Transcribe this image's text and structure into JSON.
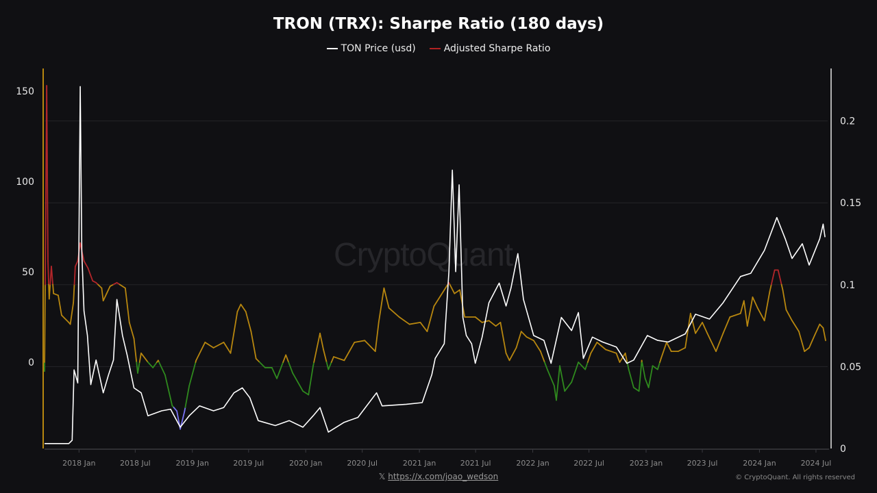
{
  "title": "TRON (TRX): Sharpe Ratio (180 days)",
  "legend": [
    {
      "label": "TON Price (usd)",
      "color": "#ffffff"
    },
    {
      "label": "Adjusted Sharpe Ratio",
      "color": "#b22222"
    }
  ],
  "watermark": "CryptoQuant",
  "footer": {
    "x_icon": "𝕏",
    "link": "https://x.com/joao_wedson",
    "copyright": "© CryptoQuant. All rights reserved"
  },
  "chart_data": {
    "type": "line",
    "title": "TRON (TRX): Sharpe Ratio (180 days)",
    "grid": true,
    "legend_position": "top-center",
    "x_range": [
      "2017-09-12",
      "2024-08-01"
    ],
    "x_ticks": [
      "2018 Jan",
      "2018 Jul",
      "2019 Jan",
      "2019 Jul",
      "2020 Jan",
      "2020 Jul",
      "2021 Jan",
      "2021 Jul",
      "2022 Jan",
      "2022 Jul",
      "2023 Jan",
      "2023 Jul",
      "2024 Jan",
      "2024 Jul"
    ],
    "x_tick_dates": [
      "2018-01-01",
      "2018-07-01",
      "2019-01-01",
      "2019-07-01",
      "2020-01-01",
      "2020-07-01",
      "2021-01-01",
      "2021-07-01",
      "2022-01-01",
      "2022-07-01",
      "2023-01-01",
      "2023-07-01",
      "2024-01-01",
      "2024-07-01"
    ],
    "y_left": {
      "ticks": [
        0,
        50,
        100,
        150
      ],
      "range": [
        -47.7,
        162
      ]
    },
    "y_right": {
      "ticks": [
        0,
        0.05,
        0.1,
        0.15,
        0.2
      ],
      "range": [
        0,
        0.232
      ]
    },
    "sharpe_color_bands": [
      {
        "min": 43,
        "max": 1000,
        "color": "#b3262a"
      },
      {
        "min": 0,
        "max": 43,
        "color": "#b8870f"
      },
      {
        "min": -25,
        "max": 0,
        "color": "#2f8a1e"
      },
      {
        "min": -1000,
        "max": -25,
        "color": "#7a74f5"
      }
    ],
    "series": [
      {
        "name": "TON Price (usd)",
        "axis": "right",
        "color": "#ffffff",
        "points": [
          [
            "2017-09-12",
            0.003
          ],
          [
            "2017-11-29",
            0.003
          ],
          [
            "2017-12-10",
            0.005
          ],
          [
            "2017-12-16",
            0.048
          ],
          [
            "2017-12-28",
            0.04
          ],
          [
            "2018-01-05",
            0.221
          ],
          [
            "2018-01-10",
            0.12
          ],
          [
            "2018-01-17",
            0.084
          ],
          [
            "2018-01-28",
            0.069
          ],
          [
            "2018-02-08",
            0.039
          ],
          [
            "2018-02-25",
            0.054
          ],
          [
            "2018-03-20",
            0.034
          ],
          [
            "2018-04-06",
            0.045
          ],
          [
            "2018-04-22",
            0.054
          ],
          [
            "2018-05-03",
            0.091
          ],
          [
            "2018-05-21",
            0.069
          ],
          [
            "2018-06-05",
            0.057
          ],
          [
            "2018-06-27",
            0.037
          ],
          [
            "2018-07-20",
            0.034
          ],
          [
            "2018-08-11",
            0.02
          ],
          [
            "2018-09-24",
            0.023
          ],
          [
            "2018-10-23",
            0.024
          ],
          [
            "2018-11-23",
            0.013
          ],
          [
            "2018-12-22",
            0.02
          ],
          [
            "2019-01-24",
            0.026
          ],
          [
            "2019-03-10",
            0.023
          ],
          [
            "2019-04-12",
            0.025
          ],
          [
            "2019-05-15",
            0.034
          ],
          [
            "2019-06-11",
            0.037
          ],
          [
            "2019-07-05",
            0.031
          ],
          [
            "2019-08-01",
            0.017
          ],
          [
            "2019-09-25",
            0.014
          ],
          [
            "2019-11-09",
            0.017
          ],
          [
            "2019-12-23",
            0.013
          ],
          [
            "2020-01-25",
            0.02
          ],
          [
            "2020-02-16",
            0.025
          ],
          [
            "2020-03-14",
            0.01
          ],
          [
            "2020-05-04",
            0.016
          ],
          [
            "2020-06-17",
            0.019
          ],
          [
            "2020-08-16",
            0.034
          ],
          [
            "2020-09-03",
            0.026
          ],
          [
            "2020-11-20",
            0.027
          ],
          [
            "2021-01-10",
            0.028
          ],
          [
            "2021-02-10",
            0.045
          ],
          [
            "2021-02-21",
            0.055
          ],
          [
            "2021-03-22",
            0.064
          ],
          [
            "2021-04-06",
            0.108
          ],
          [
            "2021-04-17",
            0.17
          ],
          [
            "2021-04-28",
            0.108
          ],
          [
            "2021-05-09",
            0.161
          ],
          [
            "2021-05-21",
            0.08
          ],
          [
            "2021-06-01",
            0.069
          ],
          [
            "2021-06-18",
            0.064
          ],
          [
            "2021-06-30",
            0.052
          ],
          [
            "2021-07-22",
            0.068
          ],
          [
            "2021-08-13",
            0.089
          ],
          [
            "2021-09-15",
            0.101
          ],
          [
            "2021-10-07",
            0.087
          ],
          [
            "2021-10-23",
            0.098
          ],
          [
            "2021-11-14",
            0.119
          ],
          [
            "2021-12-02",
            0.091
          ],
          [
            "2022-01-04",
            0.069
          ],
          [
            "2022-02-06",
            0.066
          ],
          [
            "2022-03-01",
            0.052
          ],
          [
            "2022-04-03",
            0.08
          ],
          [
            "2022-05-06",
            0.072
          ],
          [
            "2022-05-28",
            0.083
          ],
          [
            "2022-06-13",
            0.055
          ],
          [
            "2022-07-12",
            0.068
          ],
          [
            "2022-08-14",
            0.065
          ],
          [
            "2022-09-27",
            0.062
          ],
          [
            "2022-10-31",
            0.052
          ],
          [
            "2022-11-22",
            0.054
          ],
          [
            "2023-01-05",
            0.069
          ],
          [
            "2023-02-07",
            0.066
          ],
          [
            "2023-03-13",
            0.065
          ],
          [
            "2023-05-07",
            0.07
          ],
          [
            "2023-06-09",
            0.082
          ],
          [
            "2023-07-24",
            0.079
          ],
          [
            "2023-09-06",
            0.089
          ],
          [
            "2023-11-01",
            0.105
          ],
          [
            "2023-12-04",
            0.107
          ],
          [
            "2024-01-17",
            0.121
          ],
          [
            "2024-02-26",
            0.141
          ],
          [
            "2024-03-24",
            0.128
          ],
          [
            "2024-04-15",
            0.116
          ],
          [
            "2024-05-18",
            0.125
          ],
          [
            "2024-06-09",
            0.112
          ],
          [
            "2024-07-13",
            0.128
          ],
          [
            "2024-07-24",
            0.137
          ],
          [
            "2024-07-30",
            0.129
          ]
        ]
      },
      {
        "name": "Adjusted Sharpe Ratio",
        "axis": "left",
        "points": [
          [
            "2017-09-12",
            -5
          ],
          [
            "2017-09-14",
            40
          ],
          [
            "2017-09-19",
            153
          ],
          [
            "2017-09-23",
            56
          ],
          [
            "2017-09-27",
            35
          ],
          [
            "2017-10-04",
            53
          ],
          [
            "2017-10-11",
            38
          ],
          [
            "2017-10-26",
            37
          ],
          [
            "2017-11-06",
            26
          ],
          [
            "2017-11-29",
            22
          ],
          [
            "2017-12-04",
            21
          ],
          [
            "2017-12-14",
            33
          ],
          [
            "2017-12-20",
            53
          ],
          [
            "2017-12-28",
            56
          ],
          [
            "2018-01-05",
            66
          ],
          [
            "2018-01-17",
            56
          ],
          [
            "2018-01-30",
            52
          ],
          [
            "2018-02-14",
            45
          ],
          [
            "2018-02-25",
            44
          ],
          [
            "2018-03-15",
            41
          ],
          [
            "2018-03-20",
            34
          ],
          [
            "2018-03-31",
            38
          ],
          [
            "2018-04-11",
            42
          ],
          [
            "2018-05-03",
            44
          ],
          [
            "2018-05-30",
            41
          ],
          [
            "2018-06-12",
            22
          ],
          [
            "2018-06-27",
            13
          ],
          [
            "2018-07-09",
            -6
          ],
          [
            "2018-07-20",
            5
          ],
          [
            "2018-08-11",
            0
          ],
          [
            "2018-08-27",
            -3
          ],
          [
            "2018-09-13",
            1
          ],
          [
            "2018-10-05",
            -7
          ],
          [
            "2018-10-28",
            -24
          ],
          [
            "2018-11-12",
            -27
          ],
          [
            "2018-11-23",
            -37
          ],
          [
            "2018-12-07",
            -27
          ],
          [
            "2018-12-22",
            -13
          ],
          [
            "2019-01-13",
            1
          ],
          [
            "2019-02-11",
            11
          ],
          [
            "2019-03-10",
            8
          ],
          [
            "2019-04-12",
            11
          ],
          [
            "2019-05-04",
            5
          ],
          [
            "2019-05-26",
            28
          ],
          [
            "2019-06-06",
            32
          ],
          [
            "2019-06-22",
            28
          ],
          [
            "2019-07-09",
            17
          ],
          [
            "2019-07-25",
            2
          ],
          [
            "2019-08-23",
            -3
          ],
          [
            "2019-09-14",
            -3
          ],
          [
            "2019-09-30",
            -9
          ],
          [
            "2019-10-29",
            4
          ],
          [
            "2019-11-20",
            -6
          ],
          [
            "2019-12-23",
            -16
          ],
          [
            "2020-01-10",
            -18
          ],
          [
            "2020-01-25",
            -2
          ],
          [
            "2020-02-16",
            16
          ],
          [
            "2020-02-27",
            7
          ],
          [
            "2020-03-14",
            -4
          ],
          [
            "2020-03-31",
            3
          ],
          [
            "2020-05-04",
            1
          ],
          [
            "2020-06-06",
            11
          ],
          [
            "2020-07-09",
            12
          ],
          [
            "2020-08-12",
            6
          ],
          [
            "2020-08-23",
            22
          ],
          [
            "2020-09-09",
            41
          ],
          [
            "2020-09-25",
            30
          ],
          [
            "2020-10-28",
            25
          ],
          [
            "2020-11-30",
            21
          ],
          [
            "2021-01-04",
            22
          ],
          [
            "2021-01-26",
            17
          ],
          [
            "2021-02-17",
            31
          ],
          [
            "2021-04-06",
            44
          ],
          [
            "2021-04-24",
            38
          ],
          [
            "2021-05-11",
            40
          ],
          [
            "2021-05-27",
            25
          ],
          [
            "2021-06-30",
            25
          ],
          [
            "2021-07-22",
            22
          ],
          [
            "2021-08-13",
            23
          ],
          [
            "2021-09-04",
            20
          ],
          [
            "2021-09-19",
            22
          ],
          [
            "2021-10-07",
            5
          ],
          [
            "2021-10-18",
            1
          ],
          [
            "2021-11-09",
            8
          ],
          [
            "2021-11-25",
            17
          ],
          [
            "2021-12-12",
            14
          ],
          [
            "2022-01-04",
            12
          ],
          [
            "2022-01-26",
            6
          ],
          [
            "2022-02-17",
            -4
          ],
          [
            "2022-03-11",
            -13
          ],
          [
            "2022-03-18",
            -21
          ],
          [
            "2022-03-29",
            -2
          ],
          [
            "2022-04-14",
            -16
          ],
          [
            "2022-05-06",
            -11
          ],
          [
            "2022-05-28",
            0
          ],
          [
            "2022-06-19",
            -4
          ],
          [
            "2022-07-07",
            5
          ],
          [
            "2022-07-27",
            11
          ],
          [
            "2022-08-24",
            7
          ],
          [
            "2022-09-27",
            5
          ],
          [
            "2022-10-08",
            0
          ],
          [
            "2022-10-26",
            5
          ],
          [
            "2022-11-06",
            -4
          ],
          [
            "2022-11-22",
            -14
          ],
          [
            "2022-12-09",
            -16
          ],
          [
            "2022-12-18",
            1
          ],
          [
            "2022-12-29",
            -9
          ],
          [
            "2023-01-09",
            -14
          ],
          [
            "2023-01-22",
            -2
          ],
          [
            "2023-02-07",
            -4
          ],
          [
            "2023-02-18",
            2
          ],
          [
            "2023-03-08",
            11
          ],
          [
            "2023-03-23",
            6
          ],
          [
            "2023-04-14",
            6
          ],
          [
            "2023-05-07",
            8
          ],
          [
            "2023-05-24",
            27
          ],
          [
            "2023-06-09",
            16
          ],
          [
            "2023-07-01",
            22
          ],
          [
            "2023-07-17",
            16
          ],
          [
            "2023-08-14",
            6
          ],
          [
            "2023-09-06",
            16
          ],
          [
            "2023-09-28",
            25
          ],
          [
            "2023-11-01",
            27
          ],
          [
            "2023-11-12",
            34
          ],
          [
            "2023-11-23",
            20
          ],
          [
            "2023-12-10",
            36
          ],
          [
            "2023-12-26",
            30
          ],
          [
            "2024-01-17",
            23
          ],
          [
            "2024-02-03",
            39
          ],
          [
            "2024-02-19",
            51
          ],
          [
            "2024-03-01",
            51
          ],
          [
            "2024-03-16",
            40
          ],
          [
            "2024-03-27",
            29
          ],
          [
            "2024-04-15",
            23
          ],
          [
            "2024-05-07",
            17
          ],
          [
            "2024-05-25",
            6
          ],
          [
            "2024-06-09",
            8
          ],
          [
            "2024-06-27",
            15
          ],
          [
            "2024-07-13",
            21
          ],
          [
            "2024-07-24",
            19
          ],
          [
            "2024-08-01",
            12
          ]
        ]
      }
    ]
  }
}
